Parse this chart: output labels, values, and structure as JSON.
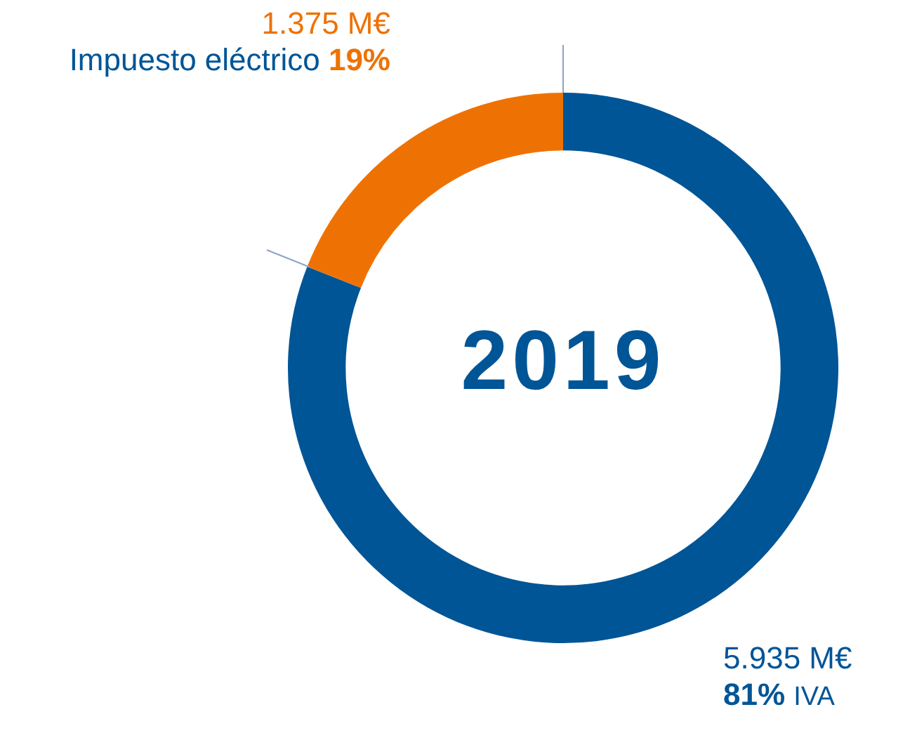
{
  "chart_data": {
    "type": "donut",
    "title": "2019",
    "categories": [
      "IVA",
      "Impuesto eléctrico"
    ],
    "values": [
      81,
      19
    ],
    "colors": [
      "#005596",
      "#ee7203"
    ],
    "value_labels": [
      "81%",
      "19%"
    ],
    "annotations": [
      "5.935 M€",
      "1.375 M€"
    ],
    "legend": false
  }
}
